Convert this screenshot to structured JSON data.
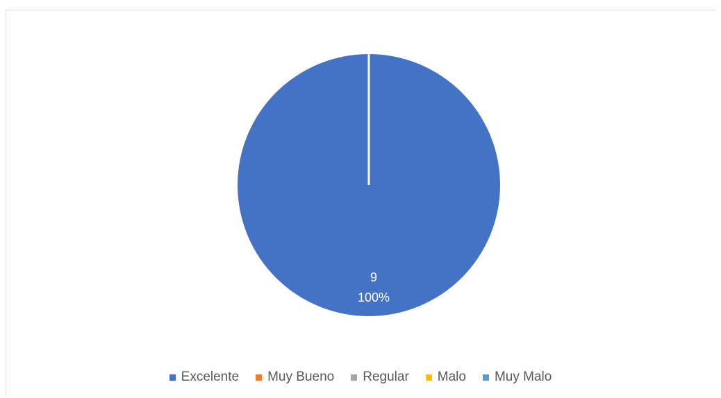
{
  "chart_data": {
    "type": "pie",
    "categories": [
      "Excelente",
      "Muy Bueno",
      "Regular",
      "Malo",
      "Muy Malo"
    ],
    "values": [
      9,
      0,
      0,
      0,
      0
    ],
    "colors": [
      "#4472c4",
      "#ed7d31",
      "#a5a5a5",
      "#ffc000",
      "#5b9bd5"
    ],
    "data_labels": [
      {
        "value": "9",
        "percent": "100%"
      }
    ],
    "legend_position": "bottom"
  }
}
